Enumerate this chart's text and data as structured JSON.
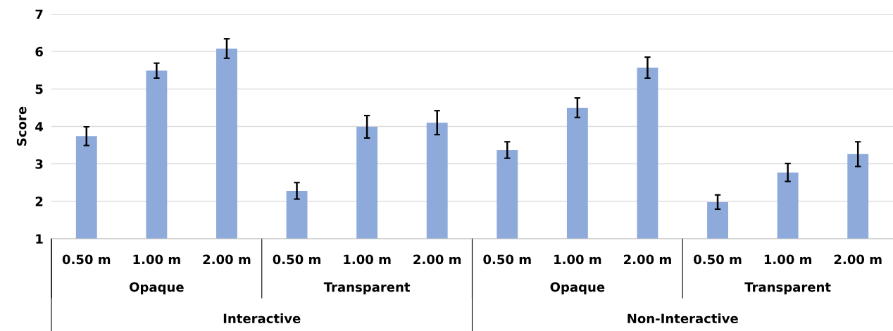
{
  "chart_data": {
    "type": "bar",
    "ylabel": "Score",
    "categories": [
      "0.50 m",
      "1.00 m",
      "2.00 m",
      "0.50 m",
      "1.00 m",
      "2.00 m",
      "0.50 m",
      "1.00 m",
      "2.00 m",
      "0.50 m",
      "1.00 m",
      "2.00 m"
    ],
    "values": [
      3.74,
      5.49,
      6.08,
      2.28,
      3.99,
      4.1,
      3.37,
      4.5,
      5.57,
      1.98,
      2.77,
      3.26
    ],
    "errors": [
      0.25,
      0.2,
      0.26,
      0.22,
      0.3,
      0.32,
      0.22,
      0.26,
      0.28,
      0.19,
      0.24,
      0.33
    ],
    "color": "#8eaadb",
    "annotations": [
      "Opaque",
      "Transparent",
      "Opaque",
      "Transparent",
      "Interactive",
      "Non-Interactive"
    ],
    "ylim": [
      1,
      7
    ],
    "yticks": [
      1,
      2,
      3,
      4,
      5,
      6,
      7
    ],
    "grid": "y",
    "legend": false
  }
}
